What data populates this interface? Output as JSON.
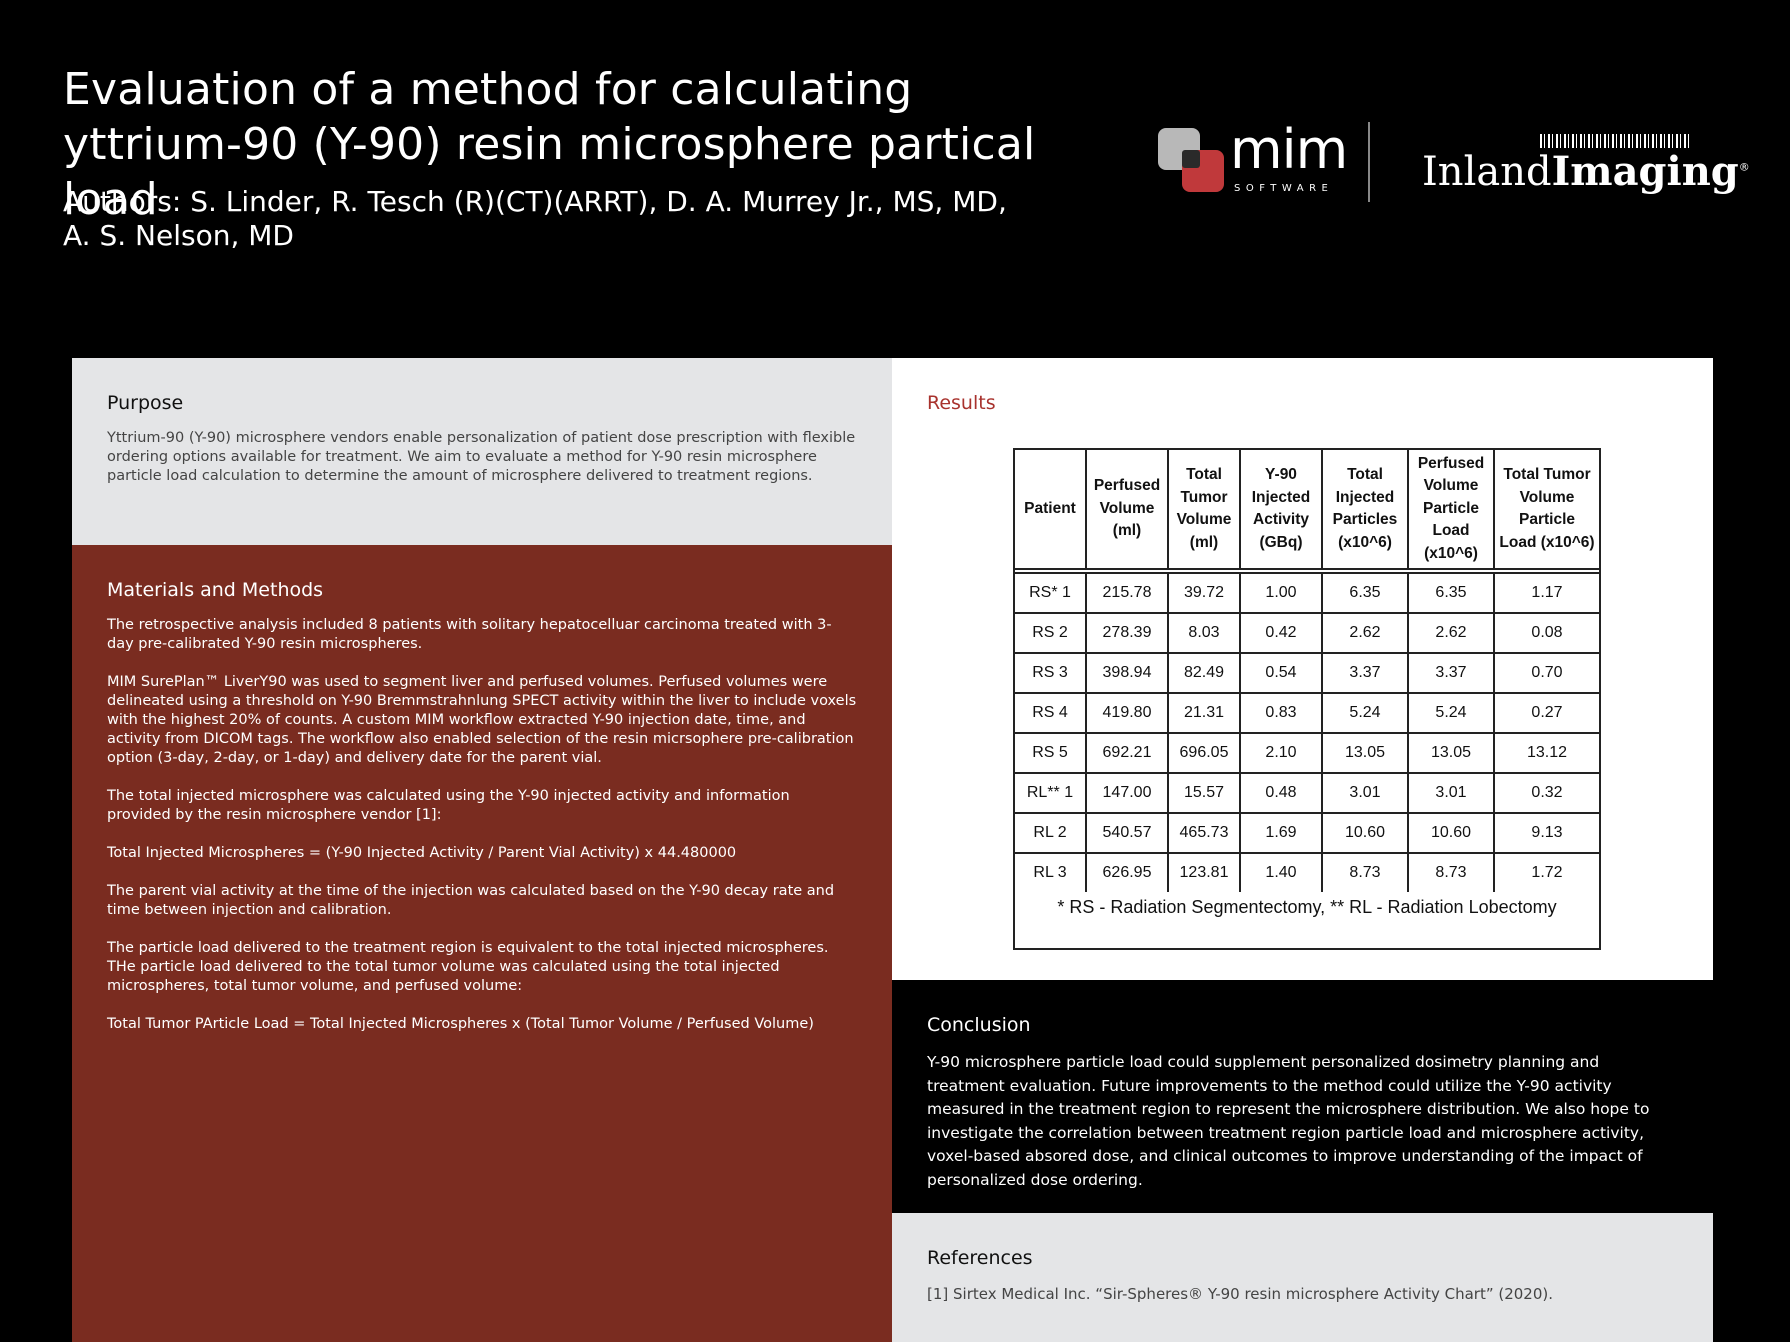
{
  "header": {
    "title_line1": "Evaluation of a method for calculating",
    "title_line2": "yttrium-90 (Y-90) resin microsphere partical load",
    "authors": "Authors: S. Linder, R. Tesch (R)(CT)(ARRT), D. A. Murrey Jr., MS, MD, A. S. Nelson, MD"
  },
  "logos": {
    "mim": "mim",
    "mim_sub": "SOFTWARE",
    "inland_regular": "Inland",
    "inland_bold": "Imaging",
    "brand_red": "#c0393b"
  },
  "purpose": {
    "heading": "Purpose",
    "text": "Yttrium-90 (Y-90) microsphere vendors enable personalization of patient dose prescription with flexible ordering options available for treatment. We aim to evaluate a method for Y-90 resin microsphere particle load calculation to determine the amount of microsphere delivered to treatment regions."
  },
  "methods": {
    "heading": "Materials and Methods",
    "paragraphs": [
      "The retrospective analysis included 8 patients with solitary hepatocelluar carcinoma treated with 3-day pre-calibrated Y-90 resin microspheres.",
      "MIM SurePlan™ LiverY90 was used to segment liver and perfused volumes. Perfused volumes were delineated using a threshold on Y-90 Bremmstrahnlung SPECT activity within the liver to include voxels with the highest 20% of counts. A custom MIM workflow extracted Y-90 injection date, time, and activity from DICOM tags. The workflow also enabled selection of the resin micrsophere pre-calibration option (3-day, 2-day, or 1-day) and delivery date for the parent vial.",
      "The total injected microsphere was calculated using the Y-90 injected activity and information provided by the resin microsphere vendor [1]:",
      "Total Injected Microspheres = (Y-90 Injected Activity / Parent Vial Activity) x 44.480000",
      "The parent vial activity at the time of the injection was calculated based on the Y-90 decay rate and time between injection and calibration.",
      "The particle load delivered to the treatment region is equivalent to the total injected microspheres. THe particle load delivered to the total tumor volume was calculated using the total injected microspheres, total tumor volume, and perfused volume:",
      "Total Tumor PArticle Load = Total Injected Microspheres x (Total Tumor Volume / Perfused Volume)"
    ],
    "background": "#7a2c20"
  },
  "results": {
    "heading": "Results",
    "heading_color": "#a8322d",
    "table": {
      "headers": [
        "Patient",
        "Perfused Volume (ml)",
        "Total Tumor Volume (ml)",
        "Y-90 Injected Activity (GBq)",
        "Total Injected Particles (x10^6)",
        "Perfused Volume Particle Load (x10^6)",
        "Total Tumor Volume Particle Load (x10^6)"
      ],
      "rows": [
        [
          "RS* 1",
          "215.78",
          "39.72",
          "1.00",
          "6.35",
          "6.35",
          "1.17"
        ],
        [
          "RS 2",
          "278.39",
          "8.03",
          "0.42",
          "2.62",
          "2.62",
          "0.08"
        ],
        [
          "RS 3",
          "398.94",
          "82.49",
          "0.54",
          "3.37",
          "3.37",
          "0.70"
        ],
        [
          "RS 4",
          "419.80",
          "21.31",
          "0.83",
          "5.24",
          "5.24",
          "0.27"
        ],
        [
          "RS 5",
          "692.21",
          "696.05",
          "2.10",
          "13.05",
          "13.05",
          "13.12"
        ],
        [
          "RL** 1",
          "147.00",
          "15.57",
          "0.48",
          "3.01",
          "3.01",
          "0.32"
        ],
        [
          "RL 2",
          "540.57",
          "465.73",
          "1.69",
          "10.60",
          "10.60",
          "9.13"
        ],
        [
          "RL 3",
          "626.95",
          "123.81",
          "1.40",
          "8.73",
          "8.73",
          "1.72"
        ]
      ],
      "footnote": "* RS - Radiation Segmentectomy, ** RL - Radiation Lobectomy"
    }
  },
  "conclusion": {
    "heading": "Conclusion",
    "text": "Y-90 microsphere particle load could supplement personalized dosimetry planning and treatment evaluation. Future improvements to the method could utilize the Y-90 activity measured in the treatment region to represent the microsphere distribution. We also hope to investigate the correlation between treatment region particle load and microsphere activity, voxel-based absored dose, and clinical outcomes to improve understanding of the impact of personalized dose ordering."
  },
  "references": {
    "heading": "References",
    "items": [
      "[1] Sirtex Medical Inc. “Sir-Spheres® Y-90 resin microsphere Activity Chart” (2020)."
    ]
  }
}
